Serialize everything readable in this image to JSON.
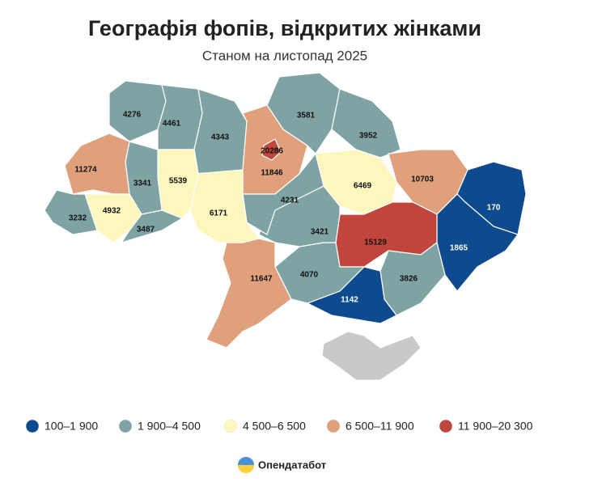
{
  "header": {
    "title": "Географія фопів, відкритих жінками",
    "subtitle": "Станом на листопад 2025"
  },
  "legend": [
    {
      "label": "100–1 900",
      "color": "#0e4a8e"
    },
    {
      "label": "1 900–4 500",
      "color": "#7fa3a3"
    },
    {
      "label": "4 500–6 500",
      "color": "#fdf6bd"
    },
    {
      "label": "6 500–11 900",
      "color": "#e0a07b"
    },
    {
      "label": "11 900–20 300",
      "color": "#c0463d"
    }
  ],
  "regions": [
    {
      "value": 4276,
      "class": 1
    },
    {
      "value": 4461,
      "class": 1
    },
    {
      "value": 4343,
      "class": 1
    },
    {
      "value": 11846,
      "class": 3
    },
    {
      "value": 3581,
      "class": 1
    },
    {
      "value": 3952,
      "class": 1
    },
    {
      "value": 10703,
      "class": 3
    },
    {
      "value": 6469,
      "class": 2
    },
    {
      "value": 170,
      "class": 0
    },
    {
      "value": 1865,
      "class": 0
    },
    {
      "value": 15129,
      "class": 4
    },
    {
      "value": 3826,
      "class": 1
    },
    {
      "value": 1142,
      "class": 0
    },
    {
      "value": 4070,
      "class": 1
    },
    {
      "value": 3421,
      "class": 1
    },
    {
      "value": 4231,
      "class": 1
    },
    {
      "value": 6171,
      "class": 2
    },
    {
      "value": 5539,
      "class": 2
    },
    {
      "value": 3341,
      "class": 1
    },
    {
      "value": 11274,
      "class": 3
    },
    {
      "value": 4932,
      "class": 2
    },
    {
      "value": 3232,
      "class": 1
    },
    {
      "value": 3487,
      "class": 1
    },
    {
      "value": 11647,
      "class": 3
    },
    {
      "value": 20286,
      "class": 4
    }
  ],
  "logo": "Опендатабот"
}
